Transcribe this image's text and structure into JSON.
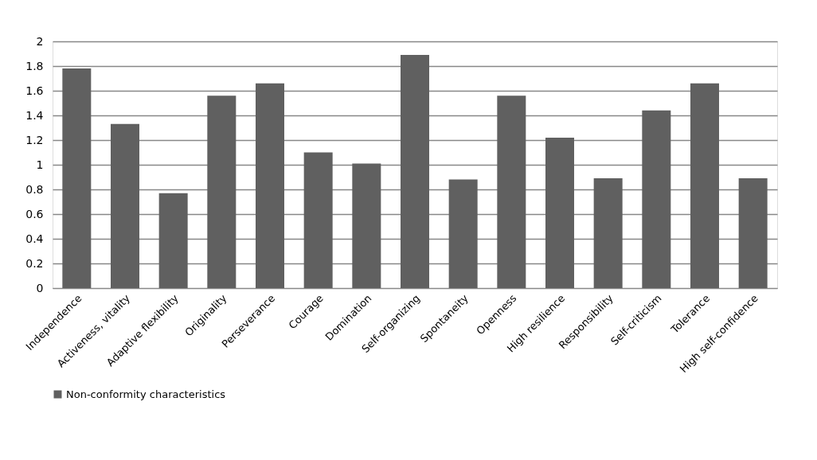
{
  "chart_data": {
    "type": "bar",
    "categories": [
      "Independence",
      "Activeness, vitality",
      "Adaptive flexibility",
      "Originality",
      "Perseverance",
      "Courage",
      "Domination",
      "Self-organizing",
      "Spontaneity",
      "Openness",
      "High resilience",
      "Responsibility",
      "Self-criticism",
      "Tolerance",
      "High self-confidence"
    ],
    "series": [
      {
        "name": "Non-conformity characteristics",
        "color": "#606060",
        "values": [
          1.78,
          1.33,
          0.77,
          1.56,
          1.66,
          1.1,
          1.01,
          1.89,
          0.88,
          1.56,
          1.22,
          0.89,
          1.44,
          1.66,
          0.89
        ]
      }
    ],
    "ylim": [
      0,
      2
    ],
    "yticks": [
      0,
      0.2,
      0.4,
      0.6,
      0.8,
      1,
      1.2,
      1.4,
      1.6,
      1.8,
      2
    ],
    "grid": "y",
    "legend": "bottom"
  }
}
